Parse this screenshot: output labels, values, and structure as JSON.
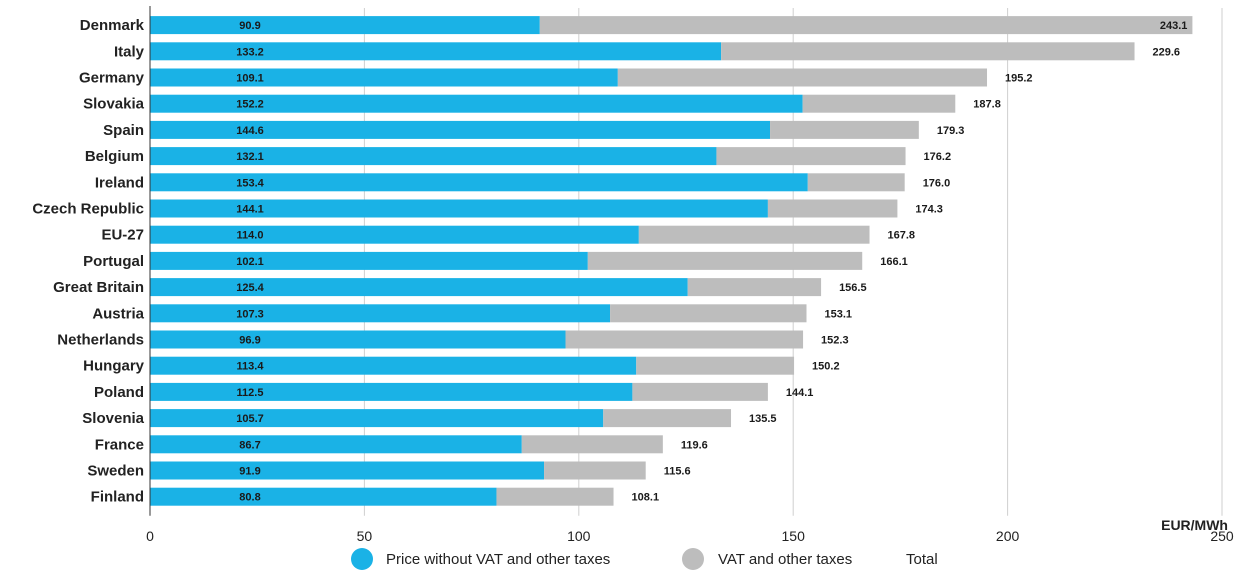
{
  "chart_data": {
    "type": "bar",
    "orientation": "horizontal",
    "stacked": true,
    "categories": [
      "Denmark",
      "Italy",
      "Germany",
      "Slovakia",
      "Spain",
      "Belgium",
      "Ireland",
      "Czech Republic",
      "EU-27",
      "Portugal",
      "Great Britain",
      "Austria",
      "Netherlands",
      "Hungary",
      "Poland",
      "Slovenia",
      "France",
      "Sweden",
      "Finland"
    ],
    "series": [
      {
        "name": "Price without VAT and other taxes",
        "color": "#1ab2e6",
        "values": [
          90.9,
          133.2,
          109.1,
          152.2,
          144.6,
          132.1,
          153.4,
          144.1,
          114.0,
          102.1,
          125.4,
          107.3,
          96.9,
          113.4,
          112.5,
          105.7,
          86.7,
          91.9,
          80.8
        ]
      },
      {
        "name": "VAT and other taxes",
        "color": "#bdbdbd",
        "values": [
          152.2,
          96.4,
          86.1,
          35.6,
          34.7,
          44.1,
          22.6,
          30.2,
          53.8,
          64.0,
          31.1,
          45.8,
          55.4,
          36.8,
          31.6,
          29.8,
          32.9,
          23.7,
          27.3
        ]
      }
    ],
    "totals": [
      243.1,
      229.6,
      195.2,
      187.8,
      179.3,
      176.2,
      176.0,
      174.3,
      167.8,
      166.1,
      156.5,
      153.1,
      152.3,
      150.2,
      144.1,
      135.5,
      119.6,
      115.6,
      108.1
    ],
    "value_labels": [
      "90.9",
      "133.2",
      "109.1",
      "152.2",
      "144.6",
      "132.1",
      "153.4",
      "144.1",
      "114.0",
      "102.1",
      "125.4",
      "107.3",
      "96.9",
      "113.4",
      "112.5",
      "105.7",
      "86.7",
      "91.9",
      "80.8"
    ],
    "total_labels": [
      "243.1",
      "229.6",
      "195.2",
      "187.8",
      "179.3",
      "176.2",
      "176.0",
      "174.3",
      "167.8",
      "166.1",
      "156.5",
      "153.1",
      "152.3",
      "150.2",
      "144.1",
      "135.5",
      "119.6",
      "115.6",
      "108.1"
    ],
    "xlim": [
      0,
      250
    ],
    "xticks": [
      "0",
      "50",
      "100",
      "150",
      "200",
      "250"
    ],
    "xtick_values": [
      0,
      50,
      100,
      150,
      200,
      250
    ],
    "unit_label": "EUR/MWh",
    "grid": "vertical",
    "legend": {
      "placement": "bottom",
      "items": [
        {
          "label": "Price without VAT and other taxes",
          "color": "#1ab2e6",
          "marker": "circle"
        },
        {
          "label": "VAT and other taxes",
          "color": "#bdbdbd",
          "marker": "circle"
        },
        {
          "label": "Total",
          "marker": "none"
        }
      ]
    }
  }
}
